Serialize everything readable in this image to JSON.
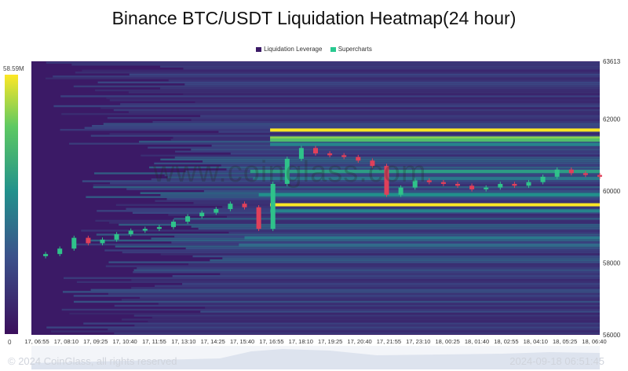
{
  "chart_data": {
    "type": "heatmap",
    "title": "Binance BTC/USDT Liquidation Heatmap(24 hour)",
    "legend": [
      {
        "name": "Liquidation Leverage",
        "color": "#3b1a66"
      },
      {
        "name": "Supercharts",
        "color": "#28c990"
      }
    ],
    "legend_position": "top-center",
    "y_axis": {
      "min": 56000,
      "max": 63613,
      "ticks": [
        63613,
        62000,
        60000,
        58000,
        56000
      ],
      "position": "right"
    },
    "x_axis": {
      "ticks": [
        "17, 06:55",
        "17, 08:10",
        "17, 09:25",
        "17, 10:40",
        "17, 11:55",
        "17, 13:10",
        "17, 14:25",
        "17, 15:40",
        "17, 16:55",
        "17, 18:10",
        "17, 19:25",
        "17, 20:40",
        "17, 21:55",
        "17, 23:10",
        "18, 00:25",
        "18, 01:40",
        "18, 02:55",
        "18, 04:10",
        "18, 05:25",
        "18, 06:40"
      ]
    },
    "colorbar": {
      "min_label": "0",
      "max_label": "58.59M",
      "colors": [
        "#3b0f5c",
        "#3b528b",
        "#21918c",
        "#5ec962",
        "#fde725"
      ]
    },
    "price_series": {
      "name": "BTC/USDT",
      "t": [
        0,
        0.5,
        1,
        1.5,
        2,
        2.5,
        3,
        3.5,
        4,
        4.5,
        5,
        5.5,
        6,
        6.5,
        7,
        7.5,
        8,
        8.5,
        9,
        9.5,
        10,
        10.5,
        11,
        11.5,
        12,
        12.5,
        13,
        13.5,
        14,
        14.5,
        15,
        15.5,
        16,
        16.5,
        17,
        17.5,
        18,
        18.5,
        19,
        19.5
      ],
      "close": [
        58250,
        58400,
        58700,
        58550,
        58650,
        58800,
        58900,
        58950,
        59000,
        59150,
        59300,
        59400,
        59500,
        59650,
        59550,
        58950,
        60200,
        60900,
        61200,
        61050,
        61000,
        60950,
        60850,
        60700,
        59900,
        60100,
        60300,
        60250,
        60200,
        60150,
        60050,
        60100,
        60200,
        60150,
        60250,
        60400,
        60600,
        60500,
        60450,
        60400
      ]
    },
    "liquidation_bands": [
      {
        "price": 61700,
        "start_t": 7.9,
        "intensity": 1.0
      },
      {
        "price": 61480,
        "start_t": 7.9,
        "intensity": 0.85
      },
      {
        "price": 61420,
        "start_t": 7.9,
        "intensity": 0.75
      },
      {
        "price": 61300,
        "start_t": 7.9,
        "intensity": 0.5
      },
      {
        "price": 60550,
        "start_t": 7.2,
        "intensity": 0.6
      },
      {
        "price": 60350,
        "start_t": 7.3,
        "intensity": 0.45
      },
      {
        "price": 59900,
        "start_t": 7.5,
        "intensity": 0.55
      },
      {
        "price": 59620,
        "start_t": 7.9,
        "intensity": 1.0
      },
      {
        "price": 59450,
        "start_t": 7.9,
        "intensity": 0.5
      },
      {
        "price": 58700,
        "start_t": 7.0,
        "intensity": 0.45
      },
      {
        "price": 58500,
        "start_t": 6.8,
        "intensity": 0.4
      }
    ]
  },
  "footer": {
    "copyright": "© 2024 CoinGlass, all rights reserved",
    "timestamp": "2024-09-18 06:51:45"
  },
  "watermark": "www.coinglass.com"
}
